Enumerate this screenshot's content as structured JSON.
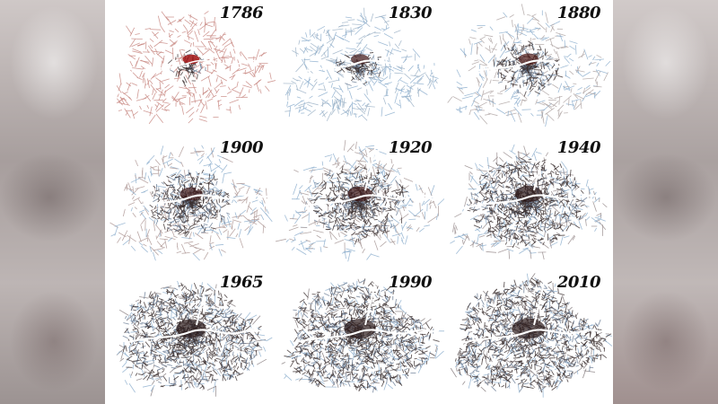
{
  "figure": {
    "panels": [
      {
        "year": "1786",
        "density": 0.05,
        "core_color": "#a01010",
        "network_color": "#c98a84"
      },
      {
        "year": "1830",
        "density": 0.1,
        "core_color": "#3a1010",
        "network_color": "#9fb4c8"
      },
      {
        "year": "1880",
        "density": 0.22,
        "core_color": "#4a1410",
        "network_color": "#b0a6a4"
      },
      {
        "year": "1900",
        "density": 0.35,
        "core_color": "#3a1212",
        "network_color": "#b09a98"
      },
      {
        "year": "1920",
        "density": 0.45,
        "core_color": "#3a1212",
        "network_color": "#a89998"
      },
      {
        "year": "1940",
        "density": 0.6,
        "core_color": "#2a1414",
        "network_color": "#9a8e8f"
      },
      {
        "year": "1965",
        "density": 0.78,
        "core_color": "#2a1818",
        "network_color": "#8a8082"
      },
      {
        "year": "1990",
        "density": 0.86,
        "core_color": "#2a1818",
        "network_color": "#867c7e"
      },
      {
        "year": "2010",
        "density": 0.92,
        "core_color": "#2a1818",
        "network_color": "#847a7c"
      }
    ],
    "colors": {
      "early_road": "#c98a84",
      "blue_road": "#8fb0cf",
      "dense_dark": "#3b3030",
      "river": "#ffffff"
    }
  }
}
